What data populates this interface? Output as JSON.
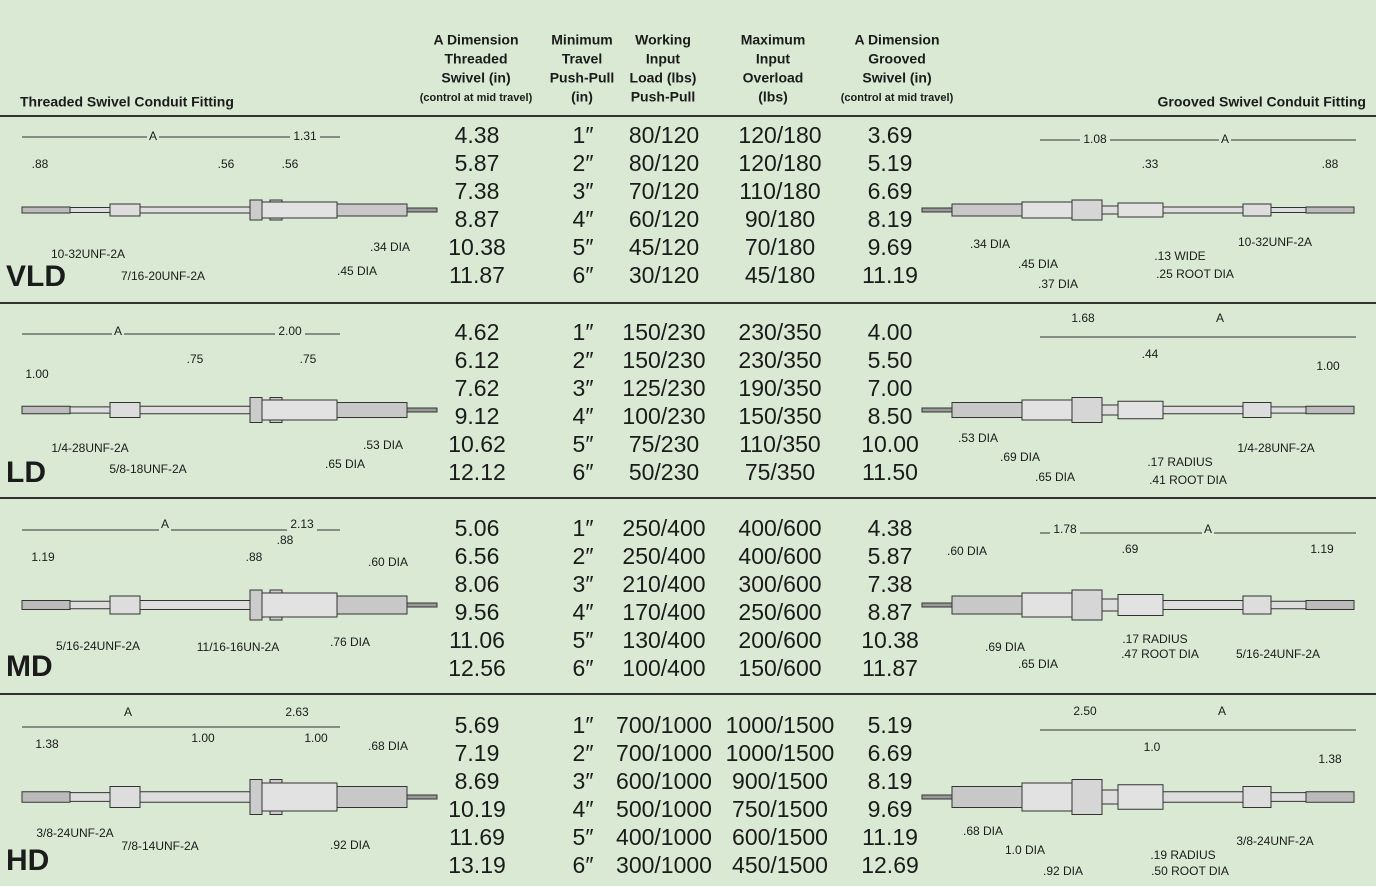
{
  "header": {
    "left_title": "Threaded Swivel Conduit Fitting",
    "right_title": "Grooved Swivel Conduit Fitting",
    "columns": [
      {
        "lines": [
          "A Dimension",
          "Threaded",
          "Swivel (in)"
        ],
        "note": "(control at mid travel)"
      },
      {
        "lines": [
          "Minimum",
          "Travel",
          "Push-Pull",
          "(in)"
        ]
      },
      {
        "lines": [
          "Working",
          "Input",
          "Load (lbs)",
          "Push-Pull"
        ]
      },
      {
        "lines": [
          "Maximum",
          "Input",
          "Overload",
          "(lbs)"
        ]
      },
      {
        "lines": [
          "A Dimension",
          "Grooved",
          "Swivel (in)"
        ],
        "note": "(control at mid travel)"
      }
    ]
  },
  "sections": [
    {
      "name": "VLD",
      "rows": [
        [
          "4.38",
          "1″",
          "80/120",
          "120/180",
          "3.69"
        ],
        [
          "5.87",
          "2″",
          "80/120",
          "120/180",
          "5.19"
        ],
        [
          "7.38",
          "3″",
          "70/120",
          "110/180",
          "6.69"
        ],
        [
          "8.87",
          "4″",
          "60/120",
          "90/180",
          "8.19"
        ],
        [
          "10.38",
          "5″",
          "45/120",
          "70/180",
          "9.69"
        ],
        [
          "11.87",
          "6″",
          "30/120",
          "45/180",
          "11.19"
        ]
      ],
      "left_labels": [
        "A",
        "1.31",
        ".88",
        ".56",
        ".56",
        ".34 DIA",
        "10-32UNF-2A",
        "7/16-20UNF-2A",
        ".45 DIA"
      ],
      "right_labels": [
        "1.08",
        "A",
        ".33",
        ".88",
        "10-32UNF-2A",
        ".34 DIA",
        ".13 WIDE",
        ".45 DIA",
        ".25 ROOT DIA",
        ".37 DIA"
      ]
    },
    {
      "name": "LD",
      "rows": [
        [
          "4.62",
          "1″",
          "150/230",
          "230/350",
          "4.00"
        ],
        [
          "6.12",
          "2″",
          "150/230",
          "230/350",
          "5.50"
        ],
        [
          "7.62",
          "3″",
          "125/230",
          "190/350",
          "7.00"
        ],
        [
          "9.12",
          "4″",
          "100/230",
          "150/350",
          "8.50"
        ],
        [
          "10.62",
          "5″",
          "75/230",
          "110/350",
          "10.00"
        ],
        [
          "12.12",
          "6″",
          "50/230",
          "75/350",
          "11.50"
        ]
      ],
      "left_labels": [
        "A",
        "2.00",
        ".75",
        ".75",
        "1.00",
        "1/4-28UNF-2A",
        ".53 DIA",
        "5/8-18UNF-2A",
        ".65 DIA"
      ],
      "right_labels": [
        "1.68",
        "A",
        ".44",
        "1.00",
        ".53 DIA",
        "1/4-28UNF-2A",
        ".69 DIA",
        ".17 RADIUS",
        ".65 DIA",
        ".41 ROOT DIA"
      ]
    },
    {
      "name": "MD",
      "rows": [
        [
          "5.06",
          "1″",
          "250/400",
          "400/600",
          "4.38"
        ],
        [
          "6.56",
          "2″",
          "250/400",
          "400/600",
          "5.87"
        ],
        [
          "8.06",
          "3″",
          "210/400",
          "300/600",
          "7.38"
        ],
        [
          "9.56",
          "4″",
          "170/400",
          "250/600",
          "8.87"
        ],
        [
          "11.06",
          "5″",
          "130/400",
          "200/600",
          "10.38"
        ],
        [
          "12.56",
          "6″",
          "100/400",
          "150/600",
          "11.87"
        ]
      ],
      "left_labels": [
        "A",
        "2.13",
        ".88",
        "1.19",
        ".88",
        ".60 DIA",
        "5/16-24UNF-2A",
        "11/16-16UN-2A",
        ".76 DIA"
      ],
      "right_labels": [
        "1.78",
        "A",
        ".60 DIA",
        ".69",
        "1.19",
        ".17 RADIUS",
        ".69 DIA",
        ".47 ROOT DIA",
        "5/16-24UNF-2A",
        ".65 DIA"
      ]
    },
    {
      "name": "HD",
      "rows": [
        [
          "5.69",
          "1″",
          "700/1000",
          "1000/1500",
          "5.19"
        ],
        [
          "7.19",
          "2″",
          "700/1000",
          "1000/1500",
          "6.69"
        ],
        [
          "8.69",
          "3″",
          "600/1000",
          "900/1500",
          "8.19"
        ],
        [
          "10.19",
          "4″",
          "500/1000",
          "750/1500",
          "9.69"
        ],
        [
          "11.69",
          "5″",
          "400/1000",
          "600/1500",
          "11.19"
        ],
        [
          "13.19",
          "6″",
          "300/1000",
          "450/1500",
          "12.69"
        ]
      ],
      "left_labels": [
        "A",
        "2.63",
        "1.00",
        "1.00",
        "1.38",
        ".68 DIA",
        "3/8-24UNF-2A",
        "7/8-14UNF-2A",
        ".92 DIA"
      ],
      "right_labels": [
        "2.50",
        "A",
        "1.0",
        "1.38",
        ".68 DIA",
        "3/8-24UNF-2A",
        "1.0 DIA",
        ".19 RADIUS",
        ".92 DIA",
        ".50 ROOT DIA"
      ]
    }
  ]
}
